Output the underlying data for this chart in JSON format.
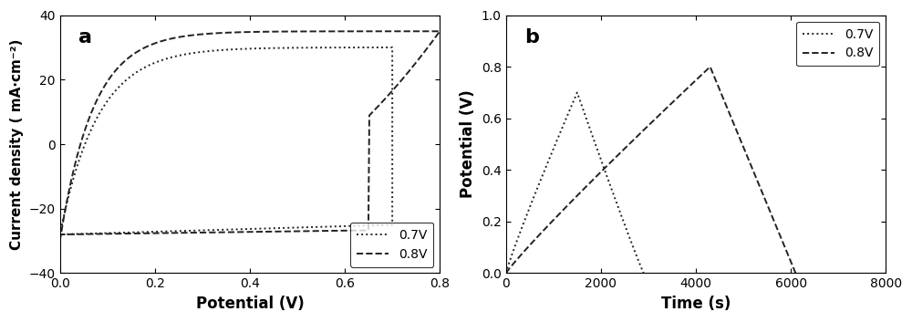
{
  "panel_a": {
    "label": "a",
    "xlabel": "Potential (V)",
    "ylabel": "Current density ( mA· cm⁻²)",
    "xlim": [
      0.0,
      0.8
    ],
    "ylim": [
      -40,
      40
    ],
    "xticks": [
      0.0,
      0.2,
      0.4,
      0.6,
      0.8
    ],
    "yticks": [
      -40,
      -20,
      0,
      20,
      40
    ],
    "legend_07": "0.7V",
    "legend_08": "0.8V",
    "color": "#222222"
  },
  "panel_b": {
    "label": "b",
    "xlabel": "Time (s)",
    "ylabel": "Potential (V)",
    "xlim": [
      0,
      8000
    ],
    "ylim": [
      0.0,
      1.0
    ],
    "xticks": [
      0,
      2000,
      4000,
      6000,
      8000
    ],
    "yticks": [
      0.0,
      0.2,
      0.4,
      0.6,
      0.8,
      1.0
    ],
    "legend_07": "0.7V",
    "legend_08": "0.8V",
    "color": "#222222"
  }
}
